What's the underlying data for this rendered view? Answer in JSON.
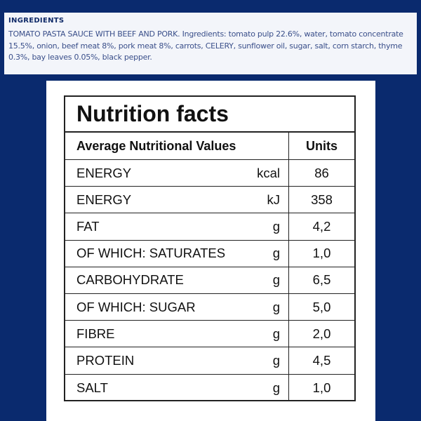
{
  "ingredients": {
    "heading": "INGREDIENTS",
    "text": "TOMATO PASTA SAUCE WITH BEEF AND PORK. Ingredients: tomato pulp 22.6%, water, tomato concentrate 15.5%, onion, beef meat 8%, pork meat 8%, carrots, CELERY, sunflower oil, sugar, salt, corn starch, thyme 0.3%, bay leaves 0.05%, black pepper."
  },
  "nutrition": {
    "title": "Nutrition facts",
    "header": {
      "name": "Average Nutritional Values",
      "units": "Units"
    },
    "rows": [
      {
        "name": "ENERGY",
        "unit": "kcal",
        "value": "86"
      },
      {
        "name": "ENERGY",
        "unit": "kJ",
        "value": "358"
      },
      {
        "name": "FAT",
        "unit": "g",
        "value": "4,2"
      },
      {
        "name": "OF WHICH: SATURATES",
        "unit": "g",
        "value": "1,0"
      },
      {
        "name": "CARBOHYDRATE",
        "unit": "g",
        "value": "6,5"
      },
      {
        "name": "OF WHICH: SUGAR",
        "unit": "g",
        "value": "5,0"
      },
      {
        "name": "FIBRE",
        "unit": "g",
        "value": "2,0"
      },
      {
        "name": "PROTEIN",
        "unit": "g",
        "value": "4,5"
      },
      {
        "name": "SALT",
        "unit": "g",
        "value": "1,0"
      }
    ]
  },
  "colors": {
    "background": "#0a2a6e",
    "ingredients_heading": "#0f2a68",
    "ingredients_text": "#3a4f8a"
  }
}
